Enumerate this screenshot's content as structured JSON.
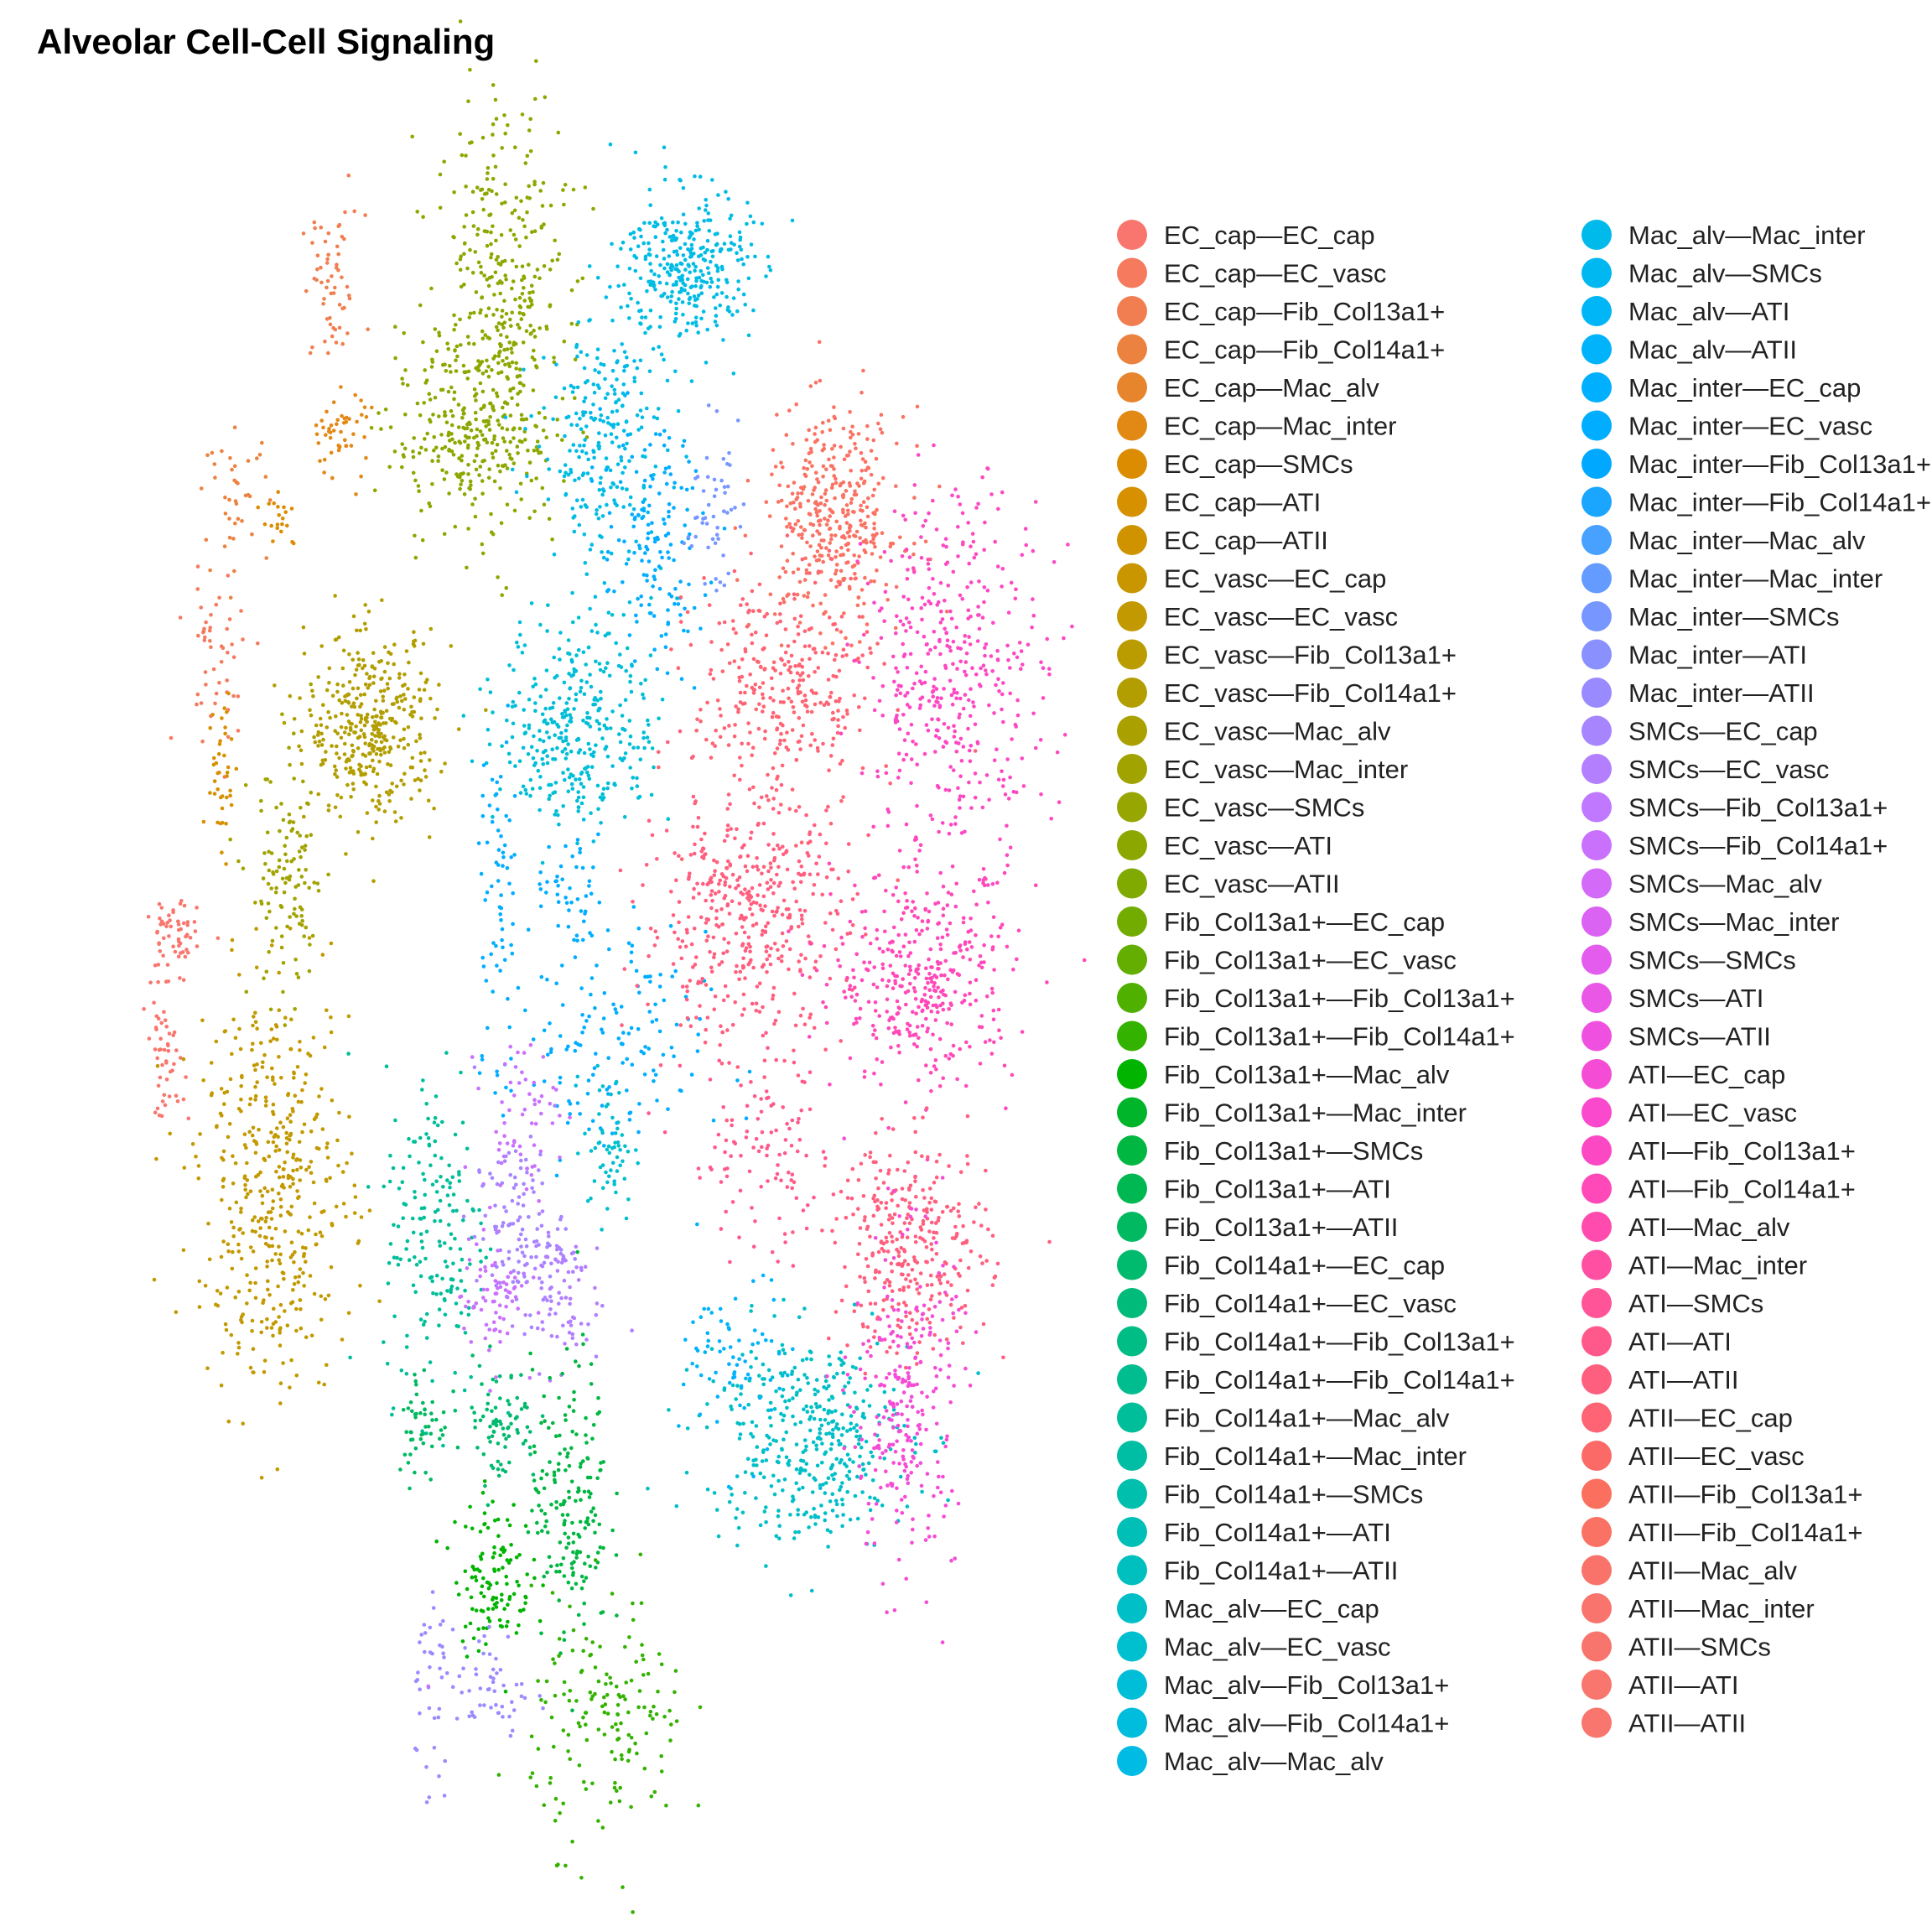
{
  "chart_data": {
    "type": "scatter",
    "title": "Alveolar Cell-Cell Signaling",
    "xlabel": "",
    "ylabel": "",
    "grid": false,
    "axes_visible": false,
    "legend_position": "right",
    "legend_columns": 2,
    "series": [
      {
        "name": "EC_cap—EC_cap",
        "color": "#F8766D"
      },
      {
        "name": "EC_cap—EC_vasc",
        "color": "#F57A5E"
      },
      {
        "name": "EC_cap—Fib_Col13a1+",
        "color": "#F17E50"
      },
      {
        "name": "EC_cap—Fib_Col14a1+",
        "color": "#EC823F"
      },
      {
        "name": "EC_cap—Mac_alv",
        "color": "#E7852D"
      },
      {
        "name": "EC_cap—Mac_inter",
        "color": "#E28915"
      },
      {
        "name": "EC_cap—SMCs",
        "color": "#DC8C00"
      },
      {
        "name": "EC_cap—ATI",
        "color": "#D69000"
      },
      {
        "name": "EC_cap—ATII",
        "color": "#D09300"
      },
      {
        "name": "EC_vasc—EC_cap",
        "color": "#C99600"
      },
      {
        "name": "EC_vasc—EC_vasc",
        "color": "#C29900"
      },
      {
        "name": "EC_vasc—Fib_Col13a1+",
        "color": "#BA9C00"
      },
      {
        "name": "EC_vasc—Fib_Col14a1+",
        "color": "#B29E00"
      },
      {
        "name": "EC_vasc—Mac_alv",
        "color": "#AAA100"
      },
      {
        "name": "EC_vasc—Mac_inter",
        "color": "#A1A300"
      },
      {
        "name": "EC_vasc—SMCs",
        "color": "#97A600"
      },
      {
        "name": "EC_vasc—ATI",
        "color": "#8CA800"
      },
      {
        "name": "EC_vasc—ATII",
        "color": "#80AA00"
      },
      {
        "name": "Fib_Col13a1+—EC_cap",
        "color": "#73AC00"
      },
      {
        "name": "Fib_Col13a1+—EC_vasc",
        "color": "#63AE00"
      },
      {
        "name": "Fib_Col13a1+—Fib_Col13a1+",
        "color": "#4FB000"
      },
      {
        "name": "Fib_Col13a1+—Fib_Col14a1+",
        "color": "#33B200"
      },
      {
        "name": "Fib_Col13a1+—Mac_alv",
        "color": "#00B400"
      },
      {
        "name": "Fib_Col13a1+—Mac_inter",
        "color": "#00B52A"
      },
      {
        "name": "Fib_Col13a1+—SMCs",
        "color": "#00B741"
      },
      {
        "name": "Fib_Col13a1+—ATI",
        "color": "#00B852"
      },
      {
        "name": "Fib_Col13a1+—ATII",
        "color": "#00B961"
      },
      {
        "name": "Fib_Col14a1+—EC_cap",
        "color": "#00BA6E"
      },
      {
        "name": "Fib_Col14a1+—EC_vasc",
        "color": "#00BB7A"
      },
      {
        "name": "Fib_Col14a1+—Fib_Col13a1+",
        "color": "#00BC85"
      },
      {
        "name": "Fib_Col14a1+—Fib_Col14a1+",
        "color": "#00BD90"
      },
      {
        "name": "Fib_Col14a1+—Mac_alv",
        "color": "#00BE9A"
      },
      {
        "name": "Fib_Col14a1+—Mac_inter",
        "color": "#00BEA4"
      },
      {
        "name": "Fib_Col14a1+—SMCs",
        "color": "#00BFAD"
      },
      {
        "name": "Fib_Col14a1+—ATI",
        "color": "#00BFB6"
      },
      {
        "name": "Fib_Col14a1+—ATII",
        "color": "#00C0BF"
      },
      {
        "name": "Mac_alv—EC_cap",
        "color": "#00BFC7"
      },
      {
        "name": "Mac_alv—EC_vasc",
        "color": "#00BFCF"
      },
      {
        "name": "Mac_alv—Fib_Col13a1+",
        "color": "#00BED7"
      },
      {
        "name": "Mac_alv—Fib_Col14a1+",
        "color": "#00BDDE"
      },
      {
        "name": "Mac_alv—Mac_alv",
        "color": "#00BCE5"
      },
      {
        "name": "Mac_alv—Mac_inter",
        "color": "#00BAEB"
      },
      {
        "name": "Mac_alv—SMCs",
        "color": "#00B8F1"
      },
      {
        "name": "Mac_alv—ATI",
        "color": "#00B6F6"
      },
      {
        "name": "Mac_alv—ATII",
        "color": "#00B3FA"
      },
      {
        "name": "Mac_inter—EC_cap",
        "color": "#00B0FE"
      },
      {
        "name": "Mac_inter—EC_vasc",
        "color": "#00ADFF"
      },
      {
        "name": "Mac_inter—Fib_Col13a1+",
        "color": "#00A9FF"
      },
      {
        "name": "Mac_inter—Fib_Col14a1+",
        "color": "#1AA5FF"
      },
      {
        "name": "Mac_inter—Mac_alv",
        "color": "#48A0FF"
      },
      {
        "name": "Mac_inter—Mac_inter",
        "color": "#639BFF"
      },
      {
        "name": "Mac_inter—SMCs",
        "color": "#7896FF"
      },
      {
        "name": "Mac_inter—ATI",
        "color": "#8A91FF"
      },
      {
        "name": "Mac_inter—ATII",
        "color": "#998BFF"
      },
      {
        "name": "SMCs—EC_cap",
        "color": "#A785FF"
      },
      {
        "name": "SMCs—EC_vasc",
        "color": "#B37FFF"
      },
      {
        "name": "SMCs—Fib_Col13a1+",
        "color": "#BF78FF"
      },
      {
        "name": "SMCs—Fib_Col14a1+",
        "color": "#C971FD"
      },
      {
        "name": "SMCs—Mac_alv",
        "color": "#D36AF8"
      },
      {
        "name": "SMCs—Mac_inter",
        "color": "#DB63F3"
      },
      {
        "name": "SMCs—SMCs",
        "color": "#E35CED"
      },
      {
        "name": "SMCs—ATI",
        "color": "#EA56E6"
      },
      {
        "name": "SMCs—ATII",
        "color": "#F050DF"
      },
      {
        "name": "ATI—EC_cap",
        "color": "#F54CD6"
      },
      {
        "name": "ATI—EC_vasc",
        "color": "#FA49CD"
      },
      {
        "name": "ATI—Fib_Col13a1+",
        "color": "#FD48C3"
      },
      {
        "name": "ATI—Fib_Col14a1+",
        "color": "#FF49B9"
      },
      {
        "name": "ATI—Mac_alv",
        "color": "#FF4BAE"
      },
      {
        "name": "ATI—Mac_inter",
        "color": "#FF4FA3"
      },
      {
        "name": "ATI—SMCs",
        "color": "#FF5497"
      },
      {
        "name": "ATI—ATI",
        "color": "#FF598B"
      },
      {
        "name": "ATI—ATII",
        "color": "#FF5F7F"
      },
      {
        "name": "ATII—EC_cap",
        "color": "#FE6473"
      },
      {
        "name": "ATII—EC_vasc",
        "color": "#FC6A67"
      },
      {
        "name": "ATII—Fib_Col13a1+",
        "color": "#FB6F5E"
      },
      {
        "name": "ATII—Fib_Col14a1+",
        "color": "#FA7263"
      },
      {
        "name": "ATII—Mac_alv",
        "color": "#F9736A"
      },
      {
        "name": "ATII—Mac_inter",
        "color": "#F8746C"
      },
      {
        "name": "ATII—SMCs",
        "color": "#F8756D"
      },
      {
        "name": "ATII—ATI",
        "color": "#F8766D"
      },
      {
        "name": "ATII—ATII",
        "color": "#F8766D"
      }
    ],
    "clusters": [
      {
        "series": 2,
        "x": 3.5,
        "y": 18.3,
        "sx": 0.25,
        "sy": 0.5,
        "n": 60
      },
      {
        "series": 16,
        "x": 6.1,
        "y": 18.0,
        "sx": 0.5,
        "sy": 1.4,
        "n": 420
      },
      {
        "series": 16,
        "x": 5.5,
        "y": 16.3,
        "sx": 0.6,
        "sy": 0.5,
        "n": 200
      },
      {
        "series": 5,
        "x": 3.6,
        "y": 16.4,
        "sx": 0.25,
        "sy": 0.3,
        "n": 50
      },
      {
        "series": 3,
        "x": 2.0,
        "y": 15.6,
        "sx": 0.25,
        "sy": 0.4,
        "n": 40
      },
      {
        "series": 6,
        "x": 2.7,
        "y": 15.3,
        "sx": 0.15,
        "sy": 0.2,
        "n": 20
      },
      {
        "series": 1,
        "x": 1.7,
        "y": 13.5,
        "sx": 0.3,
        "sy": 0.6,
        "n": 50
      },
      {
        "series": 7,
        "x": 1.8,
        "y": 12.0,
        "sx": 0.12,
        "sy": 0.6,
        "n": 40
      },
      {
        "series": 12,
        "x": 4.1,
        "y": 12.6,
        "sx": 0.5,
        "sy": 0.6,
        "n": 380
      },
      {
        "series": 14,
        "x": 2.8,
        "y": 10.5,
        "sx": 0.3,
        "sy": 0.8,
        "n": 120
      },
      {
        "series": 0,
        "x": 1.0,
        "y": 9.8,
        "sx": 0.2,
        "sy": 0.3,
        "n": 60
      },
      {
        "series": 0,
        "x": 0.9,
        "y": 8.3,
        "sx": 0.15,
        "sy": 0.4,
        "n": 50
      },
      {
        "series": 10,
        "x": 2.6,
        "y": 6.6,
        "sx": 0.6,
        "sy": 1.3,
        "n": 450
      },
      {
        "series": 40,
        "x": 9.0,
        "y": 18.6,
        "sx": 0.5,
        "sy": 0.5,
        "n": 320
      },
      {
        "series": 40,
        "x": 7.7,
        "y": 16.3,
        "sx": 0.5,
        "sy": 0.9,
        "n": 260
      },
      {
        "series": 46,
        "x": 8.5,
        "y": 14.9,
        "sx": 0.4,
        "sy": 0.8,
        "n": 140
      },
      {
        "series": 51,
        "x": 9.4,
        "y": 15.5,
        "sx": 0.2,
        "sy": 0.5,
        "n": 50
      },
      {
        "series": 38,
        "x": 7.3,
        "y": 12.6,
        "sx": 0.6,
        "sy": 0.7,
        "n": 340
      },
      {
        "series": 46,
        "x": 6.1,
        "y": 10.5,
        "sx": 0.15,
        "sy": 1.0,
        "n": 60
      },
      {
        "series": 46,
        "x": 7.2,
        "y": 10.3,
        "sx": 0.3,
        "sy": 0.4,
        "n": 50
      },
      {
        "series": 46,
        "x": 7.7,
        "y": 8.3,
        "sx": 0.8,
        "sy": 0.8,
        "n": 150
      },
      {
        "series": 37,
        "x": 7.8,
        "y": 7.1,
        "sx": 0.2,
        "sy": 0.5,
        "n": 60
      },
      {
        "series": 31,
        "x": 5.1,
        "y": 6.0,
        "sx": 0.4,
        "sy": 1.1,
        "n": 180
      },
      {
        "series": 26,
        "x": 4.9,
        "y": 3.5,
        "sx": 0.2,
        "sy": 0.4,
        "n": 50
      },
      {
        "series": 27,
        "x": 6.1,
        "y": 3.5,
        "sx": 0.3,
        "sy": 0.4,
        "n": 80
      },
      {
        "series": 57,
        "x": 6.4,
        "y": 7.5,
        "sx": 0.3,
        "sy": 0.5,
        "n": 60
      },
      {
        "series": 54,
        "x": 6.4,
        "y": 6.0,
        "sx": 0.35,
        "sy": 0.6,
        "n": 120
      },
      {
        "series": 57,
        "x": 6.0,
        "y": 5.1,
        "sx": 0.25,
        "sy": 0.4,
        "n": 70
      },
      {
        "series": 55,
        "x": 7.0,
        "y": 5.2,
        "sx": 0.35,
        "sy": 0.5,
        "n": 80
      },
      {
        "series": 24,
        "x": 7.2,
        "y": 2.5,
        "sx": 0.3,
        "sy": 0.9,
        "n": 180
      },
      {
        "series": 22,
        "x": 6.0,
        "y": 1.5,
        "sx": 0.3,
        "sy": 0.5,
        "n": 120
      },
      {
        "series": 53,
        "x": 5.0,
        "y": 0.1,
        "sx": 0.15,
        "sy": 0.8,
        "n": 40
      },
      {
        "series": 53,
        "x": 6.0,
        "y": 0.0,
        "sx": 0.3,
        "sy": 0.4,
        "n": 50
      },
      {
        "series": 21,
        "x": 7.8,
        "y": -0.4,
        "sx": 0.6,
        "sy": 0.8,
        "n": 160
      },
      {
        "series": 75,
        "x": 11.3,
        "y": 15.3,
        "sx": 0.55,
        "sy": 0.7,
        "n": 380
      },
      {
        "series": 72,
        "x": 10.5,
        "y": 13.0,
        "sx": 0.7,
        "sy": 0.8,
        "n": 320
      },
      {
        "series": 65,
        "x": 13.2,
        "y": 13.3,
        "sx": 0.7,
        "sy": 1.2,
        "n": 420
      },
      {
        "series": 71,
        "x": 9.9,
        "y": 10.1,
        "sx": 0.8,
        "sy": 0.8,
        "n": 420
      },
      {
        "series": 66,
        "x": 12.7,
        "y": 9.3,
        "sx": 0.7,
        "sy": 0.7,
        "n": 380
      },
      {
        "series": 70,
        "x": 10.2,
        "y": 7.0,
        "sx": 0.6,
        "sy": 0.7,
        "n": 110
      },
      {
        "series": 71,
        "x": 12.5,
        "y": 5.8,
        "sx": 0.6,
        "sy": 0.7,
        "n": 320
      },
      {
        "series": 36,
        "x": 10.9,
        "y": 3.3,
        "sx": 0.8,
        "sy": 0.7,
        "n": 400
      },
      {
        "series": 44,
        "x": 9.8,
        "y": 4.3,
        "sx": 0.4,
        "sy": 0.6,
        "n": 70
      },
      {
        "series": 63,
        "x": 12.4,
        "y": 3.7,
        "sx": 0.4,
        "sy": 1.1,
        "n": 260
      },
      {
        "series": 57,
        "x": 5.0,
        "y": 0.0,
        "sx": 0.05,
        "sy": 0.05,
        "n": 1
      }
    ]
  }
}
